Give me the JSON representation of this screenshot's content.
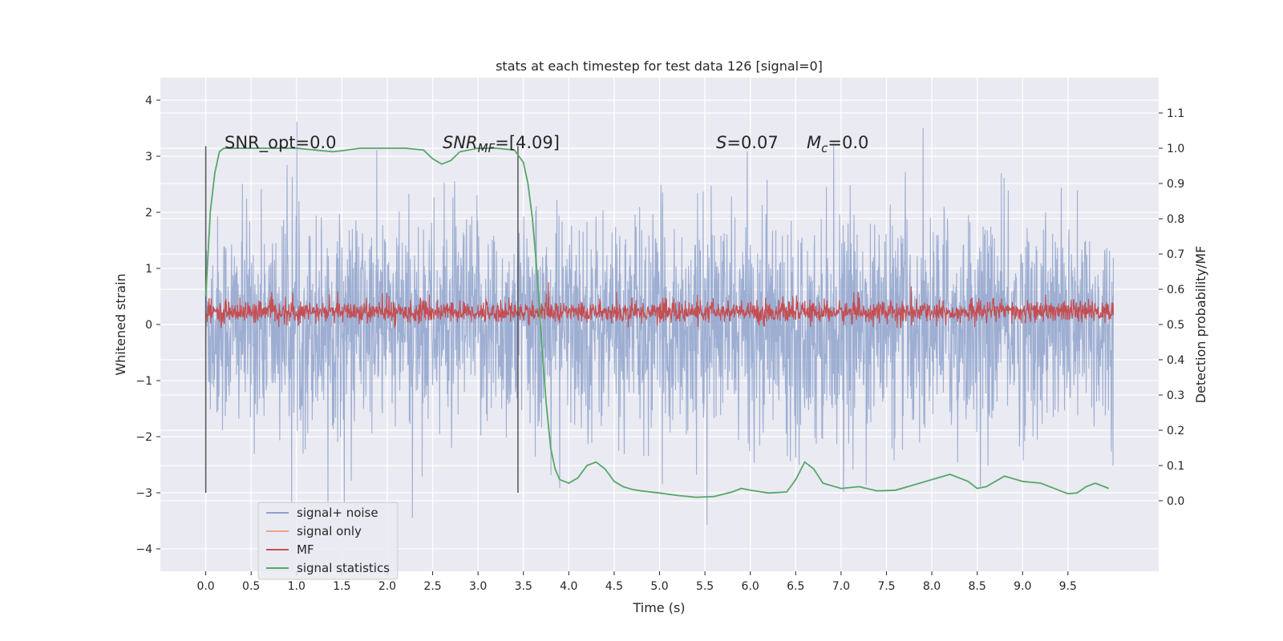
{
  "chart_data": {
    "type": "line",
    "title": "stats at each timestep for test data 126 [signal=0]",
    "xlabel": "Time (s)",
    "ylabel_left": "Whitened strain",
    "ylabel_right": "Detection probability/MF",
    "xlim": [
      -0.5,
      10.5
    ],
    "ylim_left": [
      -4.4,
      4.4
    ],
    "ylim_right": [
      -0.2,
      1.2
    ],
    "x_ticks": [
      0.0,
      0.5,
      1.0,
      1.5,
      2.0,
      2.5,
      3.0,
      3.5,
      4.0,
      4.5,
      5.0,
      5.5,
      6.0,
      6.5,
      7.0,
      7.5,
      8.0,
      8.5,
      9.0,
      9.5
    ],
    "x_tick_labels": [
      "0.0",
      "0.5",
      "1.0",
      "1.5",
      "2.0",
      "2.5",
      "3.0",
      "3.5",
      "4.0",
      "4.5",
      "5.0",
      "5.5",
      "6.0",
      "6.5",
      "7.0",
      "7.5",
      "8.0",
      "8.5",
      "9.0",
      "9.5"
    ],
    "y_left_ticks": [
      4,
      3,
      2,
      1,
      0,
      -1,
      -2,
      -3,
      -4
    ],
    "y_left_tick_labels": [
      "4",
      "3",
      "2",
      "1",
      "0",
      "−1",
      "−2",
      "−3",
      "−4"
    ],
    "y_right_ticks": [
      1.1,
      1.0,
      0.9,
      0.8,
      0.7,
      0.6,
      0.5,
      0.4,
      0.3,
      0.2,
      0.1,
      0.0
    ],
    "y_right_tick_labels": [
      "1.1",
      "1.0",
      "0.9",
      "0.8",
      "0.7",
      "0.6",
      "0.5",
      "0.4",
      "0.3",
      "0.2",
      "0.1",
      "0.0"
    ],
    "grid": true,
    "legend_position": "lower-left",
    "annotations": {
      "snr_opt": "SNR_opt=0.0",
      "snr_mf_main": "SNR",
      "snr_mf_sub": "MF",
      "snr_mf_value": "=[4.09]",
      "s_var": "S",
      "s_value": "=0.07",
      "mc_main": "M",
      "mc_sub": "c",
      "mc_value": "=0.0"
    },
    "vertical_lines": [
      0.0,
      3.44
    ],
    "series": [
      {
        "name": "signal+ noise",
        "color": "#8fa3cc",
        "axis": "left",
        "x_range": [
          0.0,
          10.0
        ],
        "typical_range": [
          -2.6,
          2.6
        ],
        "peak_range": [
          -3.9,
          4.05
        ]
      },
      {
        "name": "signal only",
        "color": "#e8a58a",
        "axis": "left"
      },
      {
        "name": "MF",
        "color": "#c44e52",
        "axis": "right",
        "x_range": [
          0.0,
          10.0
        ],
        "typical_range": [
          0.5,
          0.57
        ],
        "peak_range": [
          0.49,
          0.62
        ]
      },
      {
        "name": "signal statistics",
        "color": "#55a868",
        "axis": "right",
        "x": [
          0.0,
          0.05,
          0.1,
          0.15,
          0.2,
          0.3,
          0.5,
          0.8,
          1.0,
          1.2,
          1.4,
          1.5,
          1.7,
          2.0,
          2.2,
          2.4,
          2.5,
          2.6,
          2.7,
          2.8,
          3.0,
          3.2,
          3.4,
          3.5,
          3.55,
          3.6,
          3.65,
          3.7,
          3.75,
          3.8,
          3.85,
          3.9,
          4.0,
          4.1,
          4.2,
          4.3,
          4.4,
          4.5,
          4.6,
          4.7,
          4.8,
          5.0,
          5.2,
          5.4,
          5.6,
          5.8,
          5.9,
          6.0,
          6.2,
          6.4,
          6.5,
          6.6,
          6.7,
          6.8,
          7.0,
          7.2,
          7.4,
          7.6,
          7.8,
          8.0,
          8.2,
          8.4,
          8.5,
          8.6,
          8.7,
          8.8,
          9.0,
          9.2,
          9.4,
          9.5,
          9.6,
          9.7,
          9.8,
          9.9,
          9.95
        ],
        "y": [
          0.58,
          0.82,
          0.93,
          0.99,
          1.0,
          1.0,
          1.0,
          1.0,
          1.0,
          0.995,
          0.99,
          0.993,
          1.0,
          1.0,
          1.0,
          0.995,
          0.97,
          0.955,
          0.965,
          0.99,
          1.0,
          1.0,
          0.995,
          0.96,
          0.9,
          0.8,
          0.65,
          0.45,
          0.28,
          0.15,
          0.09,
          0.06,
          0.05,
          0.065,
          0.1,
          0.11,
          0.09,
          0.055,
          0.04,
          0.032,
          0.028,
          0.022,
          0.015,
          0.01,
          0.012,
          0.025,
          0.035,
          0.03,
          0.022,
          0.025,
          0.06,
          0.11,
          0.09,
          0.05,
          0.035,
          0.04,
          0.028,
          0.03,
          0.045,
          0.06,
          0.075,
          0.055,
          0.035,
          0.04,
          0.055,
          0.07,
          0.055,
          0.05,
          0.03,
          0.02,
          0.022,
          0.04,
          0.05,
          0.04,
          0.035
        ]
      }
    ]
  }
}
